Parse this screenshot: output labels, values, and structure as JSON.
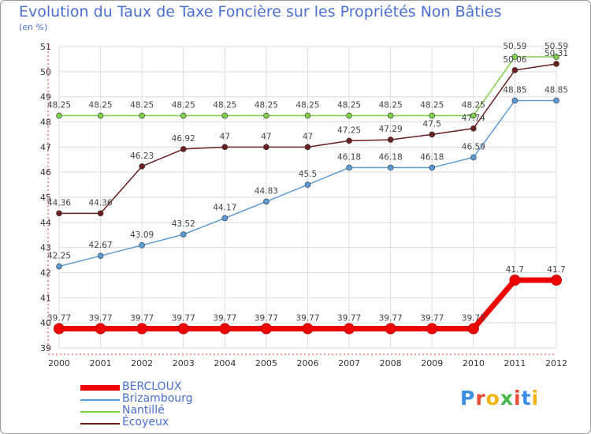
{
  "header": {
    "title": "Evolution du Taux de Taxe Foncière sur les Propriétés Non Bâties",
    "unit": "(en %)"
  },
  "logo": {
    "parts": [
      {
        "text": "P",
        "color": "#3a8ee6"
      },
      {
        "text": "r",
        "color": "#e94b35"
      },
      {
        "text": "o",
        "color": "#f2b20d"
      },
      {
        "text": "x",
        "color": "#4ab54a"
      },
      {
        "text": "i",
        "color": "#e94b35"
      },
      {
        "text": "t",
        "color": "#3a8ee6"
      },
      {
        "text": "i",
        "color": "#f2b20d"
      }
    ]
  },
  "chart_data": {
    "type": "line",
    "title": "Evolution du Taux de Taxe Foncière sur les Propriétés Non Bâties",
    "ylabel": "(en %)",
    "xlabel": "",
    "x": [
      "2000",
      "2001",
      "2002",
      "2003",
      "2004",
      "2005",
      "2006",
      "2007",
      "2008",
      "2009",
      "2010",
      "2011",
      "2012"
    ],
    "ylim": [
      39,
      51
    ],
    "yticks": [
      39,
      40,
      41,
      42,
      43,
      44,
      45,
      46,
      47,
      48,
      49,
      50,
      51
    ],
    "grid": true,
    "legend_position": "bottom-left",
    "series": [
      {
        "name": "BERCLOUX",
        "color": "#ee0000",
        "emphasis": true,
        "values": [
          39.77,
          39.77,
          39.77,
          39.77,
          39.77,
          39.77,
          39.77,
          39.77,
          39.77,
          39.77,
          39.77,
          41.7,
          41.7
        ],
        "labels": [
          "39.77",
          "39.77",
          "39.77",
          "39.77",
          "39.77",
          "39.77",
          "39.77",
          "39.77",
          "39.77",
          "39.77",
          "39.77",
          "41.7",
          "41.7"
        ]
      },
      {
        "name": "Brizambourg",
        "color": "#5b9bd5",
        "emphasis": false,
        "values": [
          42.25,
          42.67,
          43.09,
          43.52,
          44.17,
          44.83,
          45.5,
          46.18,
          46.18,
          46.18,
          46.59,
          48.85,
          48.85
        ],
        "labels": [
          "42.25",
          "42.67",
          "43.09",
          "43.52",
          "44.17",
          "44.83",
          "45.5",
          "46.18",
          "46.18",
          "46.18",
          "46.59",
          "48.85",
          "48.85"
        ]
      },
      {
        "name": "Nantillé",
        "color": "#7ed04b",
        "emphasis": false,
        "values": [
          48.25,
          48.25,
          48.25,
          48.25,
          48.25,
          48.25,
          48.25,
          48.25,
          48.25,
          48.25,
          48.25,
          50.59,
          50.59
        ],
        "labels": [
          "48.25",
          "48.25",
          "48.25",
          "48.25",
          "48.25",
          "48.25",
          "48.25",
          "48.25",
          "48.25",
          "48.25",
          "48.25",
          "50.59",
          "50.59"
        ]
      },
      {
        "name": "Écoyeux",
        "color": "#6b1f1f",
        "emphasis": false,
        "values": [
          44.36,
          44.36,
          46.23,
          46.92,
          47,
          47,
          47,
          47.25,
          47.29,
          47.5,
          47.74,
          50.06,
          50.31
        ],
        "labels": [
          "44.36",
          "44.36",
          "46.23",
          "46.92",
          "47",
          "47",
          "47",
          "47.25",
          "47.29",
          "47.5",
          "47.74",
          "50.06",
          "50.31"
        ]
      }
    ]
  }
}
